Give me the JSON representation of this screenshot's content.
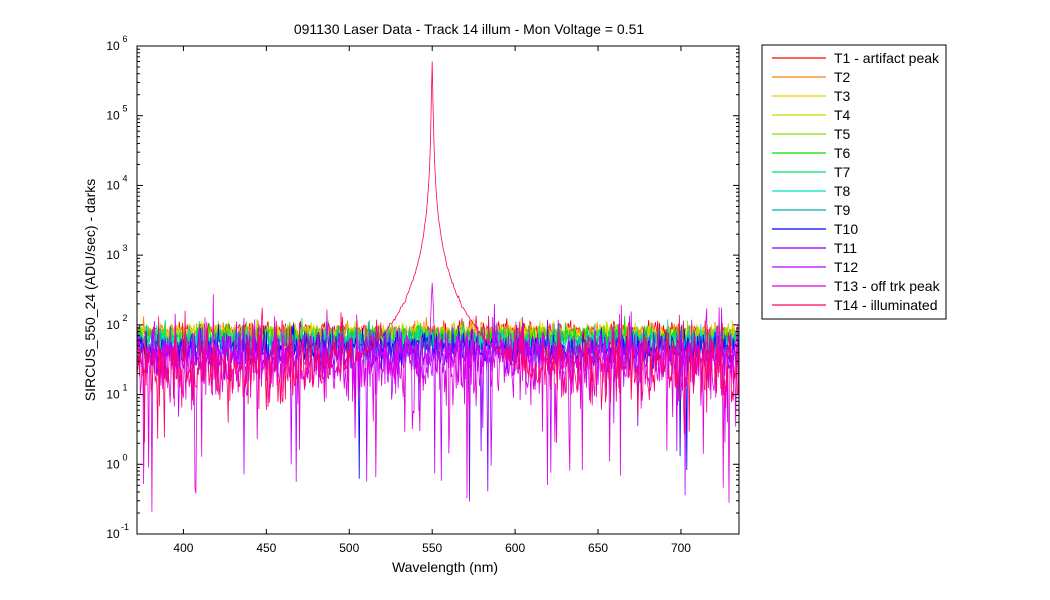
{
  "chart_data": {
    "type": "line",
    "title": "091130 Laser Data - Track 14 illum - Mon Voltage = 0.51",
    "xlabel": "Wavelength (nm)",
    "ylabel": "SIRCUS_550_24  (ADU/sec) - darks",
    "xlim": [
      372,
      735
    ],
    "ylim_log10": [
      -1,
      6
    ],
    "yscale": "log",
    "x_ticks": [
      "400",
      "450",
      "500",
      "550",
      "600",
      "650",
      "700"
    ],
    "y_tick_base": "10",
    "y_tick_exponents": [
      "-1",
      "0",
      "1",
      "2",
      "3",
      "4",
      "5",
      "6"
    ],
    "legend_position": "outside-right",
    "peak": {
      "x": 550,
      "y": 600000,
      "off_track_peak_y": 400
    },
    "series": [
      {
        "name": "T1 - artifact peak",
        "color": "#ff0000",
        "baseline": 80,
        "noise": 0.07,
        "dips": 0.0
      },
      {
        "name": "T2",
        "color": "#ff7f00",
        "baseline": 78,
        "noise": 0.07,
        "dips": 0.0
      },
      {
        "name": "T3",
        "color": "#e8d000",
        "baseline": 75,
        "noise": 0.07,
        "dips": 0.0
      },
      {
        "name": "T4",
        "color": "#c8e000",
        "baseline": 72,
        "noise": 0.08,
        "dips": 0.0
      },
      {
        "name": "T5",
        "color": "#7fe000",
        "baseline": 68,
        "noise": 0.08,
        "dips": 0.0
      },
      {
        "name": "T6",
        "color": "#00e000",
        "baseline": 64,
        "noise": 0.09,
        "dips": 0.0
      },
      {
        "name": "T7",
        "color": "#00e070",
        "baseline": 60,
        "noise": 0.09,
        "dips": 0.0
      },
      {
        "name": "T8",
        "color": "#00e0c0",
        "baseline": 56,
        "noise": 0.1,
        "dips": 0.0
      },
      {
        "name": "T9",
        "color": "#00b0b0",
        "baseline": 52,
        "noise": 0.11,
        "dips": 0.0
      },
      {
        "name": "T10",
        "color": "#0000ff",
        "baseline": 45,
        "noise": 0.13,
        "dips": 0.01
      },
      {
        "name": "T11",
        "color": "#7f00ff",
        "baseline": 40,
        "noise": 0.15,
        "dips": 0.01
      },
      {
        "name": "T12",
        "color": "#c000ff",
        "baseline": 34,
        "noise": 0.2,
        "dips": 0.02
      },
      {
        "name": "T13 - off trk peak",
        "color": "#e000e0",
        "baseline": 28,
        "noise": 0.3,
        "dips": 0.04
      },
      {
        "name": "T14 - illuminated",
        "color": "#ff0066",
        "baseline": 25,
        "noise": 0.28,
        "dips": 0.03
      }
    ]
  }
}
